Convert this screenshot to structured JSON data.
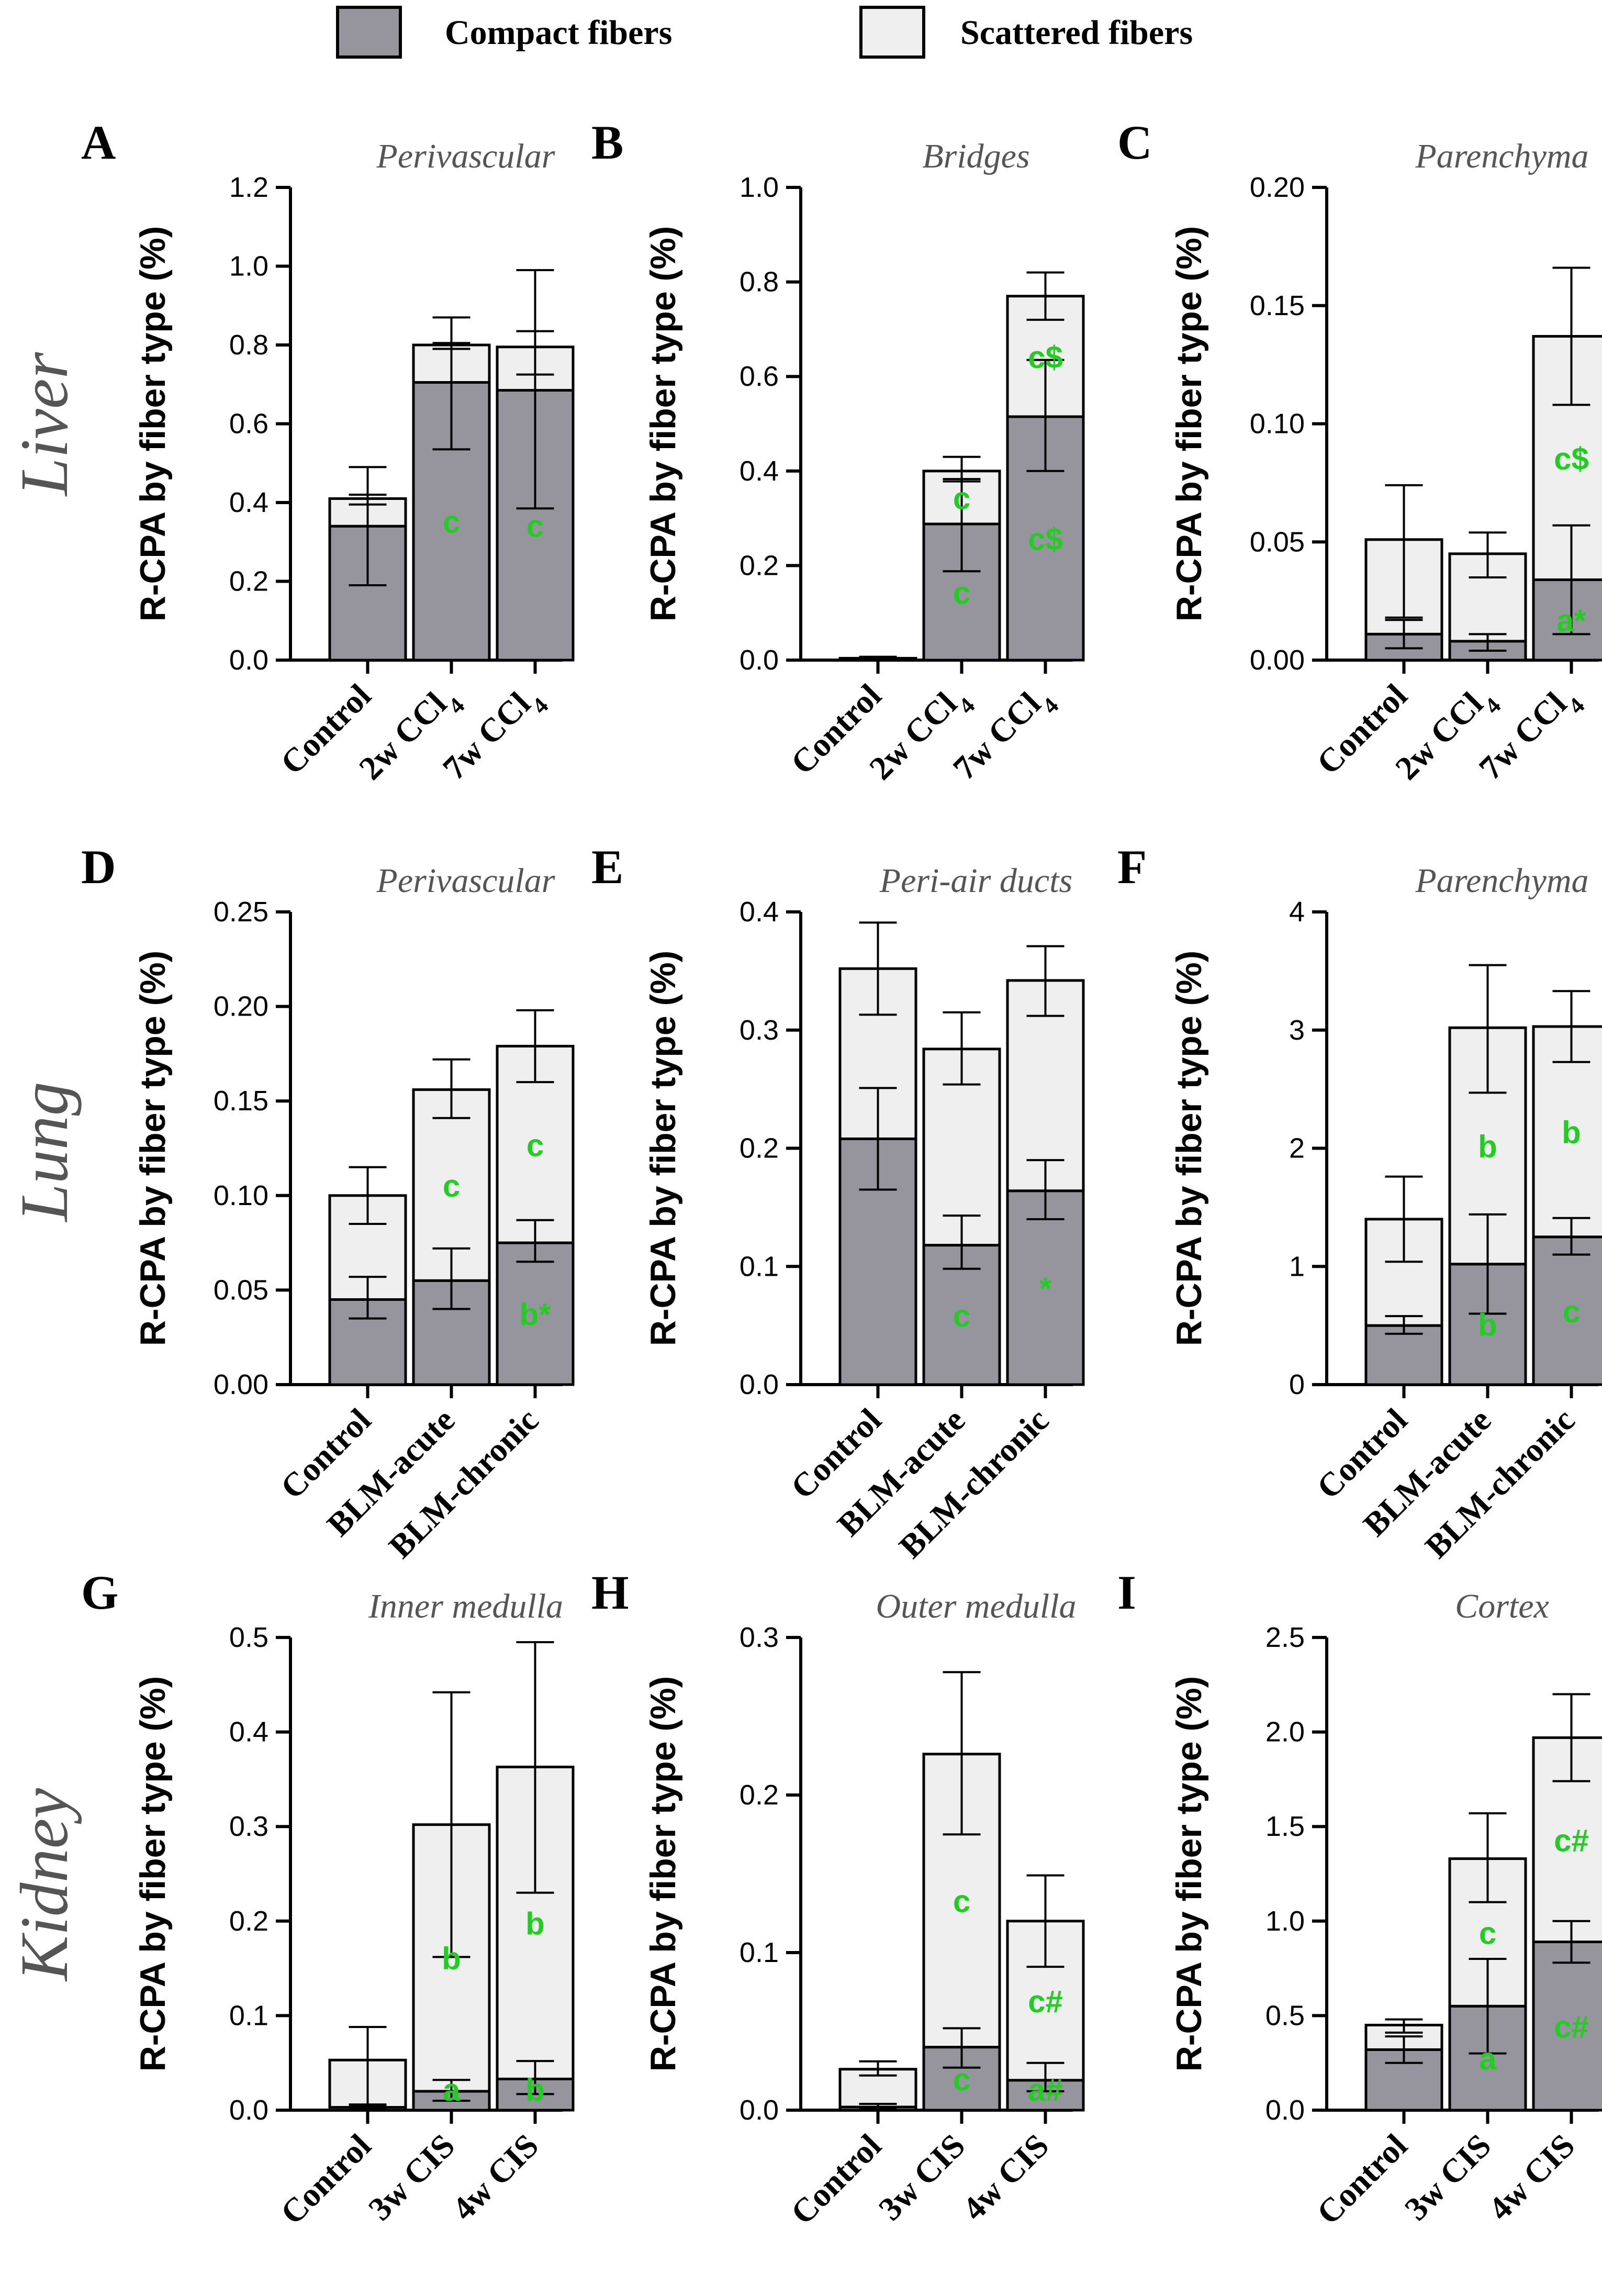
{
  "legend": {
    "compact_label": "Compact fibers",
    "scattered_label": "Scattered fibers"
  },
  "colors": {
    "compact": "#96959e",
    "scattered": "#efefef",
    "significance": "#22cc22",
    "title": "#555555"
  },
  "organs": [
    "Liver",
    "Lung",
    "Kidney"
  ],
  "chart_data": [
    {
      "type": "bar",
      "stacked": true,
      "panel": "A",
      "organ": "Liver",
      "title": "Perivascular",
      "ylabel": "R-CPA by fiber type (%)",
      "ylim": [
        0,
        1.2
      ],
      "yticks": [
        "0.0",
        "0.2",
        "0.4",
        "0.6",
        "0.8",
        "1.0",
        "1.2"
      ],
      "categories": [
        "Control",
        "2w CCl4",
        "7w CCl4"
      ],
      "series": [
        {
          "name": "Compact fibers",
          "values": [
            0.34,
            0.705,
            0.685
          ],
          "err_low": [
            0.15,
            0.17,
            0.3
          ],
          "err_high": [
            0.08,
            0.1,
            0.15
          ],
          "sig": [
            "",
            "c",
            "c"
          ]
        },
        {
          "name": "Scattered fibers",
          "values": [
            0.07,
            0.095,
            0.11
          ],
          "err_low": [
            0.015,
            0.01,
            0.07
          ],
          "err_high": [
            0.08,
            0.07,
            0.195
          ],
          "sig": [
            "",
            "",
            ""
          ]
        }
      ]
    },
    {
      "type": "bar",
      "stacked": true,
      "panel": "B",
      "organ": "Liver",
      "title": "Bridges",
      "ylabel": "R-CPA by fiber type (%)",
      "ylim": [
        0,
        1.0
      ],
      "yticks": [
        "0.0",
        "0.2",
        "0.4",
        "0.6",
        "0.8",
        "1.0"
      ],
      "categories": [
        "Control",
        "2w CCl4",
        "7w CCl4"
      ],
      "series": [
        {
          "name": "Compact fibers",
          "values": [
            0.002,
            0.288,
            0.515
          ],
          "err_low": [
            0,
            0.1,
            0.115
          ],
          "err_high": [
            0,
            0.095,
            0.12
          ],
          "sig": [
            "",
            "c",
            "c$"
          ]
        },
        {
          "name": "Scattered fibers",
          "values": [
            0.002,
            0.112,
            0.255
          ],
          "err_low": [
            0,
            0.022,
            0.05
          ],
          "err_high": [
            0.003,
            0.03,
            0.05
          ],
          "sig": [
            "",
            "c",
            "c$"
          ]
        }
      ]
    },
    {
      "type": "bar",
      "stacked": true,
      "panel": "C",
      "organ": "Liver",
      "title": "Parenchyma",
      "ylabel": "R-CPA by fiber type (%)",
      "ylim": [
        0,
        0.2
      ],
      "yticks": [
        "0.00",
        "0.05",
        "0.10",
        "0.15",
        "0.20"
      ],
      "categories": [
        "Control",
        "2w CCl4",
        "7w CCl4"
      ],
      "series": [
        {
          "name": "Compact fibers",
          "values": [
            0.011,
            0.008,
            0.034
          ],
          "err_low": [
            0.006,
            0.004,
            0.023
          ],
          "err_high": [
            0.006,
            0.003,
            0.023
          ],
          "sig": [
            "",
            "",
            "a*"
          ]
        },
        {
          "name": "Scattered fibers",
          "values": [
            0.04,
            0.037,
            0.103
          ],
          "err_low": [
            0.033,
            0.01,
            0.029
          ],
          "err_high": [
            0.023,
            0.009,
            0.029
          ],
          "sig": [
            "",
            "",
            "c$"
          ]
        }
      ]
    },
    {
      "type": "bar",
      "stacked": true,
      "panel": "D",
      "organ": "Lung",
      "title": "Perivascular",
      "ylabel": "R-CPA by fiber type (%)",
      "ylim": [
        0,
        0.25
      ],
      "yticks": [
        "0.00",
        "0.05",
        "0.10",
        "0.15",
        "0.20",
        "0.25"
      ],
      "categories": [
        "Control",
        "BLM-acute",
        "BLM-chronic"
      ],
      "series": [
        {
          "name": "Compact fibers",
          "values": [
            0.045,
            0.055,
            0.075
          ],
          "err_low": [
            0.01,
            0.015,
            0.01
          ],
          "err_high": [
            0.012,
            0.017,
            0.012
          ],
          "sig": [
            "",
            "",
            "b*"
          ]
        },
        {
          "name": "Scattered fibers",
          "values": [
            0.055,
            0.101,
            0.104
          ],
          "err_low": [
            0.015,
            0.015,
            0.019
          ],
          "err_high": [
            0.015,
            0.016,
            0.019
          ],
          "sig": [
            "",
            "c",
            "c"
          ]
        }
      ]
    },
    {
      "type": "bar",
      "stacked": true,
      "panel": "E",
      "organ": "Lung",
      "title": "Peri-air ducts",
      "ylabel": "R-CPA by fiber type (%)",
      "ylim": [
        0,
        0.4
      ],
      "yticks": [
        "0.0",
        "0.1",
        "0.2",
        "0.3",
        "0.4"
      ],
      "categories": [
        "Control",
        "BLM-acute",
        "BLM-chronic"
      ],
      "series": [
        {
          "name": "Compact fibers",
          "values": [
            0.208,
            0.118,
            0.164
          ],
          "err_low": [
            0.043,
            0.02,
            0.024
          ],
          "err_high": [
            0.043,
            0.025,
            0.026
          ],
          "sig": [
            "",
            "c",
            "*"
          ]
        },
        {
          "name": "Scattered fibers",
          "values": [
            0.144,
            0.166,
            0.178
          ],
          "err_low": [
            0.039,
            0.03,
            0.03
          ],
          "err_high": [
            0.039,
            0.031,
            0.029
          ],
          "sig": [
            "",
            "",
            ""
          ]
        }
      ]
    },
    {
      "type": "bar",
      "stacked": true,
      "panel": "F",
      "organ": "Lung",
      "title": "Parenchyma",
      "ylabel": "R-CPA by fiber type (%)",
      "ylim": [
        0,
        4
      ],
      "yticks": [
        "0",
        "1",
        "2",
        "3",
        "4"
      ],
      "categories": [
        "Control",
        "BLM-acute",
        "BLM-chronic"
      ],
      "series": [
        {
          "name": "Compact fibers",
          "values": [
            0.5,
            1.02,
            1.25
          ],
          "err_low": [
            0.07,
            0.42,
            0.15
          ],
          "err_high": [
            0.08,
            0.42,
            0.16
          ],
          "sig": [
            "",
            "b",
            "c"
          ]
        },
        {
          "name": "Scattered fibers",
          "values": [
            0.9,
            2.0,
            1.78
          ],
          "err_low": [
            0.36,
            0.55,
            0.3
          ],
          "err_high": [
            0.36,
            0.53,
            0.3
          ],
          "sig": [
            "",
            "b",
            "b"
          ]
        }
      ]
    },
    {
      "type": "bar",
      "stacked": true,
      "panel": "G",
      "organ": "Kidney",
      "title": "Inner medulla",
      "ylabel": "R-CPA by fiber type (%)",
      "ylim": [
        0,
        0.5
      ],
      "yticks": [
        "0.0",
        "0.1",
        "0.2",
        "0.3",
        "0.4",
        "0.5"
      ],
      "categories": [
        "Control",
        "3w CIS",
        "4w CIS"
      ],
      "series": [
        {
          "name": "Compact fibers",
          "values": [
            0.003,
            0.02,
            0.033
          ],
          "err_low": [
            0.002,
            0.01,
            0.016
          ],
          "err_high": [
            0.002,
            0.012,
            0.019
          ],
          "sig": [
            "",
            "a",
            "b"
          ]
        },
        {
          "name": "Scattered fibers",
          "values": [
            0.05,
            0.282,
            0.33
          ],
          "err_low": [
            0.047,
            0.14,
            0.133
          ],
          "err_high": [
            0.035,
            0.14,
            0.132
          ],
          "sig": [
            "",
            "b",
            "b"
          ]
        }
      ]
    },
    {
      "type": "bar",
      "stacked": true,
      "panel": "H",
      "organ": "Kidney",
      "title": "Outer medulla",
      "ylabel": "R-CPA by fiber type (%)",
      "ylim": [
        0,
        0.3
      ],
      "yticks": [
        "0.0",
        "0.1",
        "0.2",
        "0.3"
      ],
      "categories": [
        "Control",
        "3w CIS",
        "4w CIS"
      ],
      "series": [
        {
          "name": "Compact fibers",
          "values": [
            0.002,
            0.04,
            0.019
          ],
          "err_low": [
            0.001,
            0.013,
            0.007
          ],
          "err_high": [
            0.002,
            0.012,
            0.011
          ],
          "sig": [
            "",
            "c",
            "a#"
          ]
        },
        {
          "name": "Scattered fibers",
          "values": [
            0.024,
            0.186,
            0.101
          ],
          "err_low": [
            0.004,
            0.051,
            0.029
          ],
          "err_high": [
            0.005,
            0.052,
            0.029
          ],
          "sig": [
            "",
            "c",
            "c#"
          ]
        }
      ]
    },
    {
      "type": "bar",
      "stacked": true,
      "panel": "I",
      "organ": "Kidney",
      "title": "Cortex",
      "ylabel": "R-CPA by fiber type (%)",
      "ylim": [
        0,
        2.5
      ],
      "yticks": [
        "0.0",
        "0.5",
        "1.0",
        "1.5",
        "2.0",
        "2.5"
      ],
      "categories": [
        "Control",
        "3w CIS",
        "4w CIS"
      ],
      "series": [
        {
          "name": "Compact fibers",
          "values": [
            0.32,
            0.55,
            0.89
          ],
          "err_low": [
            0.07,
            0.25,
            0.11
          ],
          "err_high": [
            0.07,
            0.25,
            0.11
          ],
          "sig": [
            "",
            "a",
            "c#"
          ]
        },
        {
          "name": "Scattered fibers",
          "values": [
            0.13,
            0.78,
            1.08
          ],
          "err_low": [
            0.04,
            0.23,
            0.23
          ],
          "err_high": [
            0.03,
            0.24,
            0.23
          ],
          "sig": [
            "",
            "c",
            "c#"
          ]
        }
      ]
    }
  ]
}
